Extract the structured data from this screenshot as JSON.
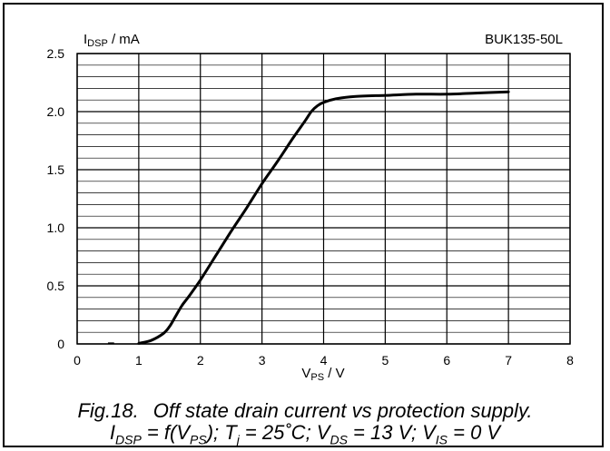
{
  "chart_data": {
    "type": "line",
    "title": "",
    "part_number": "BUK135-50L",
    "ylabel": {
      "main": "I",
      "sub": "DSP",
      "unit": " / mA"
    },
    "xlabel": {
      "main": "V",
      "sub": "PS",
      "unit": " / V"
    },
    "xlim": [
      0,
      8
    ],
    "ylim": [
      0,
      2.5
    ],
    "xticks": [
      "0",
      "1",
      "2",
      "3",
      "4",
      "5",
      "6",
      "7",
      "8"
    ],
    "yticks": [
      "0",
      "0.5",
      "1.0",
      "1.5",
      "2.0",
      "2.5"
    ],
    "grid": true,
    "series": [
      {
        "x": [
          0.5,
          0.6,
          1.0,
          1.2,
          1.4,
          1.5,
          1.6,
          1.7,
          1.8,
          2.0,
          2.25,
          2.5,
          2.75,
          3.0,
          3.25,
          3.5,
          3.7,
          3.8,
          3.9,
          4.0,
          4.2,
          4.5,
          5.0,
          5.5,
          6.0,
          6.5,
          7.0
        ],
        "y": [
          0.005,
          0.005,
          0.005,
          0.03,
          0.09,
          0.15,
          0.24,
          0.33,
          0.4,
          0.55,
          0.76,
          0.97,
          1.17,
          1.38,
          1.57,
          1.77,
          1.92,
          2.0,
          2.05,
          2.08,
          2.11,
          2.13,
          2.14,
          2.15,
          2.15,
          2.16,
          2.17
        ]
      }
    ]
  },
  "caption": {
    "fig": "Fig.18.",
    "title": "Off state drain current vs protection supply.",
    "line2": [
      {
        "t": "I"
      },
      {
        "s": "DSP"
      },
      {
        "t": " = f(V"
      },
      {
        "s": "PS"
      },
      {
        "t": "); T"
      },
      {
        "s": "j"
      },
      {
        "t": " = 25˚C; V"
      },
      {
        "s": "DS"
      },
      {
        "t": " = 13 V; V"
      },
      {
        "s": "IS"
      },
      {
        "t": " = 0 V"
      }
    ]
  }
}
